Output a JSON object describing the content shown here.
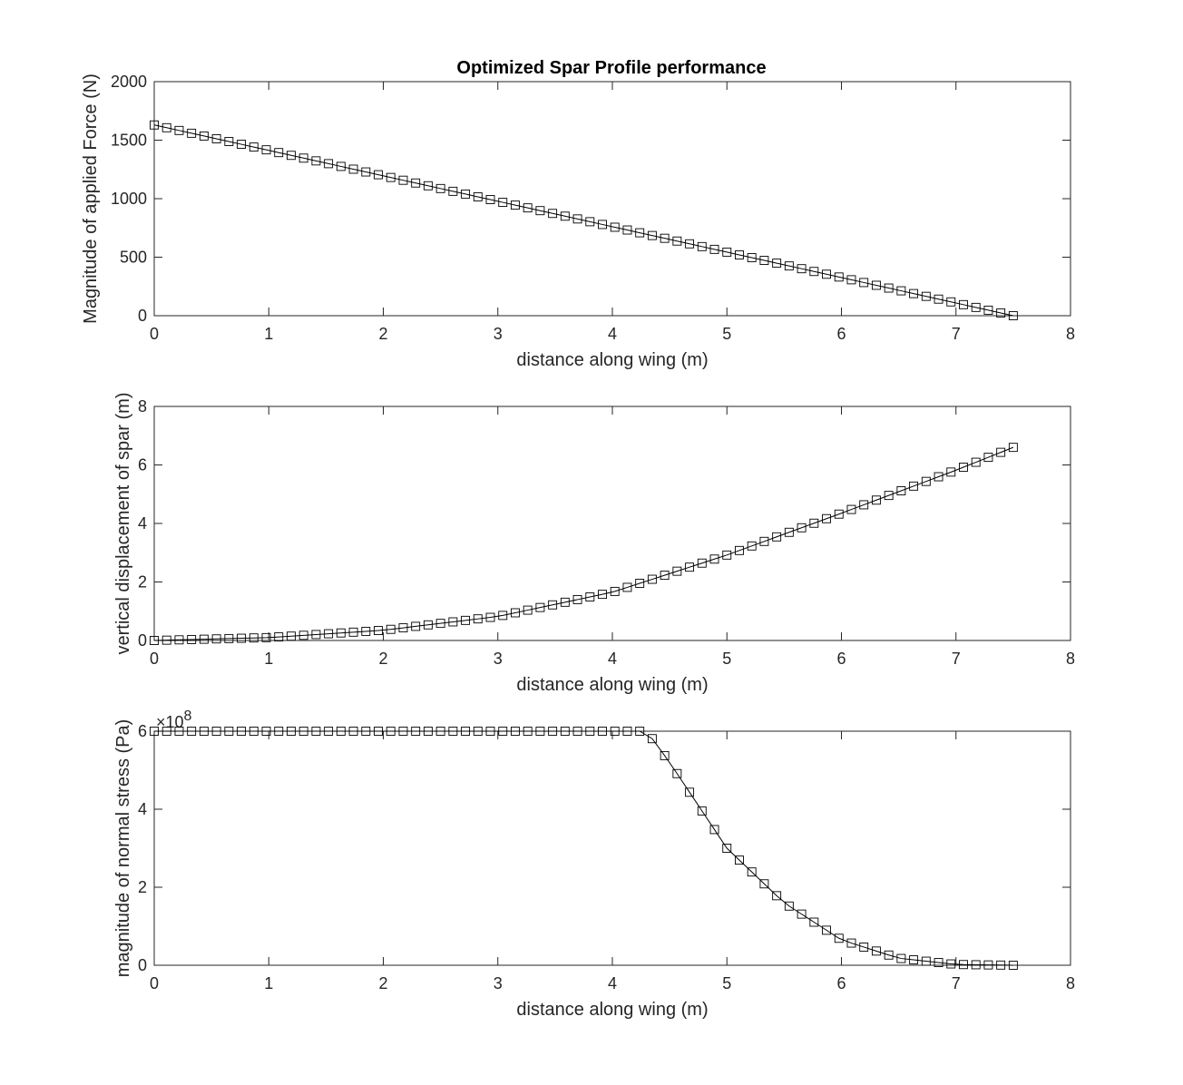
{
  "figure": {
    "title": "Optimized Spar Profile performance"
  },
  "chart_data": [
    {
      "type": "line",
      "title": "Optimized Spar Profile performance",
      "xlabel": "distance along wing (m)",
      "ylabel": "Magnitude of applied Force (N)",
      "xlim": [
        0,
        8
      ],
      "ylim": [
        0,
        2000
      ],
      "xticks": [
        0,
        1,
        2,
        3,
        4,
        5,
        6,
        7,
        8
      ],
      "yticks": [
        0,
        500,
        1000,
        1500,
        2000
      ],
      "ytick_labels": [
        "0",
        "500",
        "1000",
        "1500",
        "2000"
      ],
      "x_range": [
        0,
        7.5
      ],
      "n_points": 70,
      "y_at_x0": 1630,
      "y_at_xmax": 0,
      "y_form": "linear",
      "marker": "square",
      "grid": false
    },
    {
      "type": "line",
      "title": "",
      "xlabel": "distance along wing (m)",
      "ylabel": "vertical displacement of spar (m)",
      "xlim": [
        0,
        8
      ],
      "ylim": [
        0,
        8
      ],
      "xticks": [
        0,
        1,
        2,
        3,
        4,
        5,
        6,
        7,
        8
      ],
      "yticks": [
        0,
        2,
        4,
        6,
        8
      ],
      "ytick_labels": [
        "0",
        "2",
        "4",
        "6",
        "8"
      ],
      "x_range": [
        0,
        7.5
      ],
      "n_points": 70,
      "samples": [
        [
          0,
          0
        ],
        [
          1,
          0.1
        ],
        [
          2,
          0.35
        ],
        [
          3,
          0.82
        ],
        [
          4,
          1.65
        ],
        [
          5,
          2.92
        ],
        [
          6,
          4.35
        ],
        [
          7,
          5.82
        ],
        [
          7.5,
          6.6
        ]
      ],
      "marker": "square",
      "grid": false
    },
    {
      "type": "line",
      "title": "",
      "xlabel": "distance along wing (m)",
      "ylabel": "magnitude of normal stress (Pa)",
      "xlim": [
        0,
        8
      ],
      "ylim": [
        0,
        600000000
      ],
      "xticks": [
        0,
        1,
        2,
        3,
        4,
        5,
        6,
        7,
        8
      ],
      "yticks": [
        0,
        200000000,
        400000000,
        600000000
      ],
      "ytick_labels": [
        "0",
        "2",
        "4",
        "6"
      ],
      "y_exponent_prefix": "×10",
      "y_exponent": "8",
      "x_range": [
        0,
        7.5
      ],
      "n_points": 70,
      "plateau_value": 600000000,
      "plateau_end_x": 4.3,
      "samples": [
        [
          4.3,
          600000000
        ],
        [
          4.5,
          520000000
        ],
        [
          5,
          300000000
        ],
        [
          5.5,
          160000000
        ],
        [
          6,
          65000000
        ],
        [
          6.5,
          18000000
        ],
        [
          7,
          2000000
        ],
        [
          7.5,
          0
        ]
      ],
      "marker": "square",
      "grid": false
    }
  ]
}
